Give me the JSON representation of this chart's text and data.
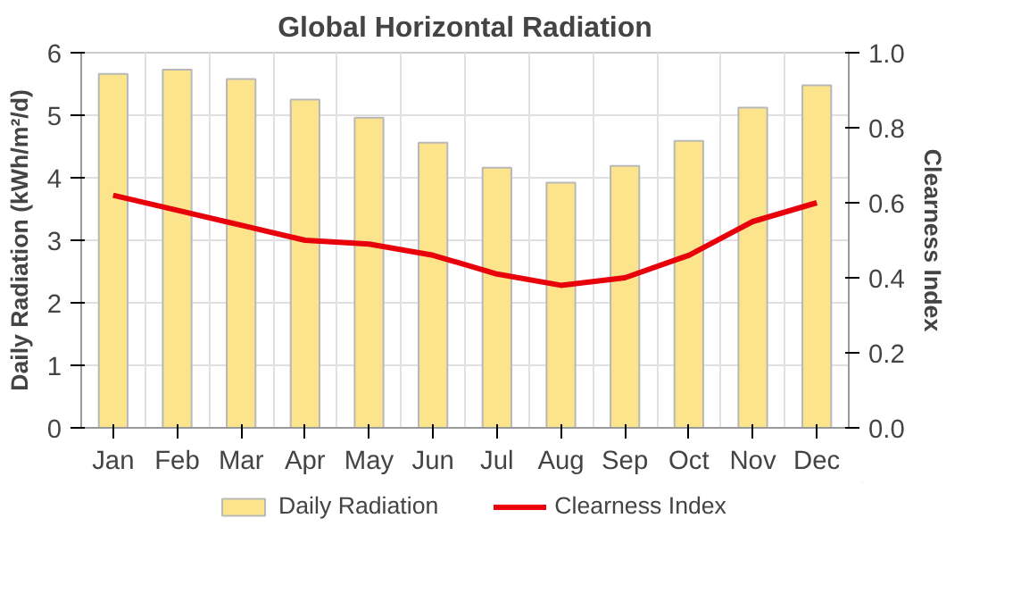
{
  "chart_data": {
    "type": "bar",
    "title": "Global Horizontal Radiation",
    "ylabel": "Daily Radiation (kWh/m²/d)",
    "y2label": "Clearness Index",
    "categories": [
      "Jan",
      "Feb",
      "Mar",
      "Apr",
      "May",
      "Jun",
      "Jul",
      "Aug",
      "Sep",
      "Oct",
      "Nov",
      "Dec"
    ],
    "series": [
      {
        "name": "Daily Radiation",
        "color": "#fce48c",
        "values": [
          5.66,
          5.73,
          5.58,
          5.25,
          4.96,
          4.56,
          4.16,
          3.92,
          4.19,
          4.59,
          5.12,
          5.48
        ]
      },
      {
        "name": "Clearness Index",
        "type": "line",
        "axis": "y2",
        "color": "#e8000b",
        "values": [
          0.62,
          0.58,
          0.54,
          0.5,
          0.49,
          0.46,
          0.41,
          0.38,
          0.4,
          0.46,
          0.55,
          0.6
        ]
      }
    ],
    "ylim": [
      0,
      6
    ],
    "yticks": [
      0,
      1,
      2,
      3,
      4,
      5,
      6
    ],
    "y2lim": [
      0,
      1
    ],
    "y2ticks": [
      {
        "value": 0,
        "label": "0.0"
      },
      {
        "value": 0.2,
        "label": "0.2"
      },
      {
        "value": 0.4,
        "label": "0.4"
      },
      {
        "value": 0.6,
        "label": "0.6"
      },
      {
        "value": 0.8,
        "label": "0.8"
      },
      {
        "value": 1,
        "label": "1.0"
      }
    ],
    "grid": true,
    "legend": "bottom",
    "marker": "none",
    "line_style": "solid"
  }
}
